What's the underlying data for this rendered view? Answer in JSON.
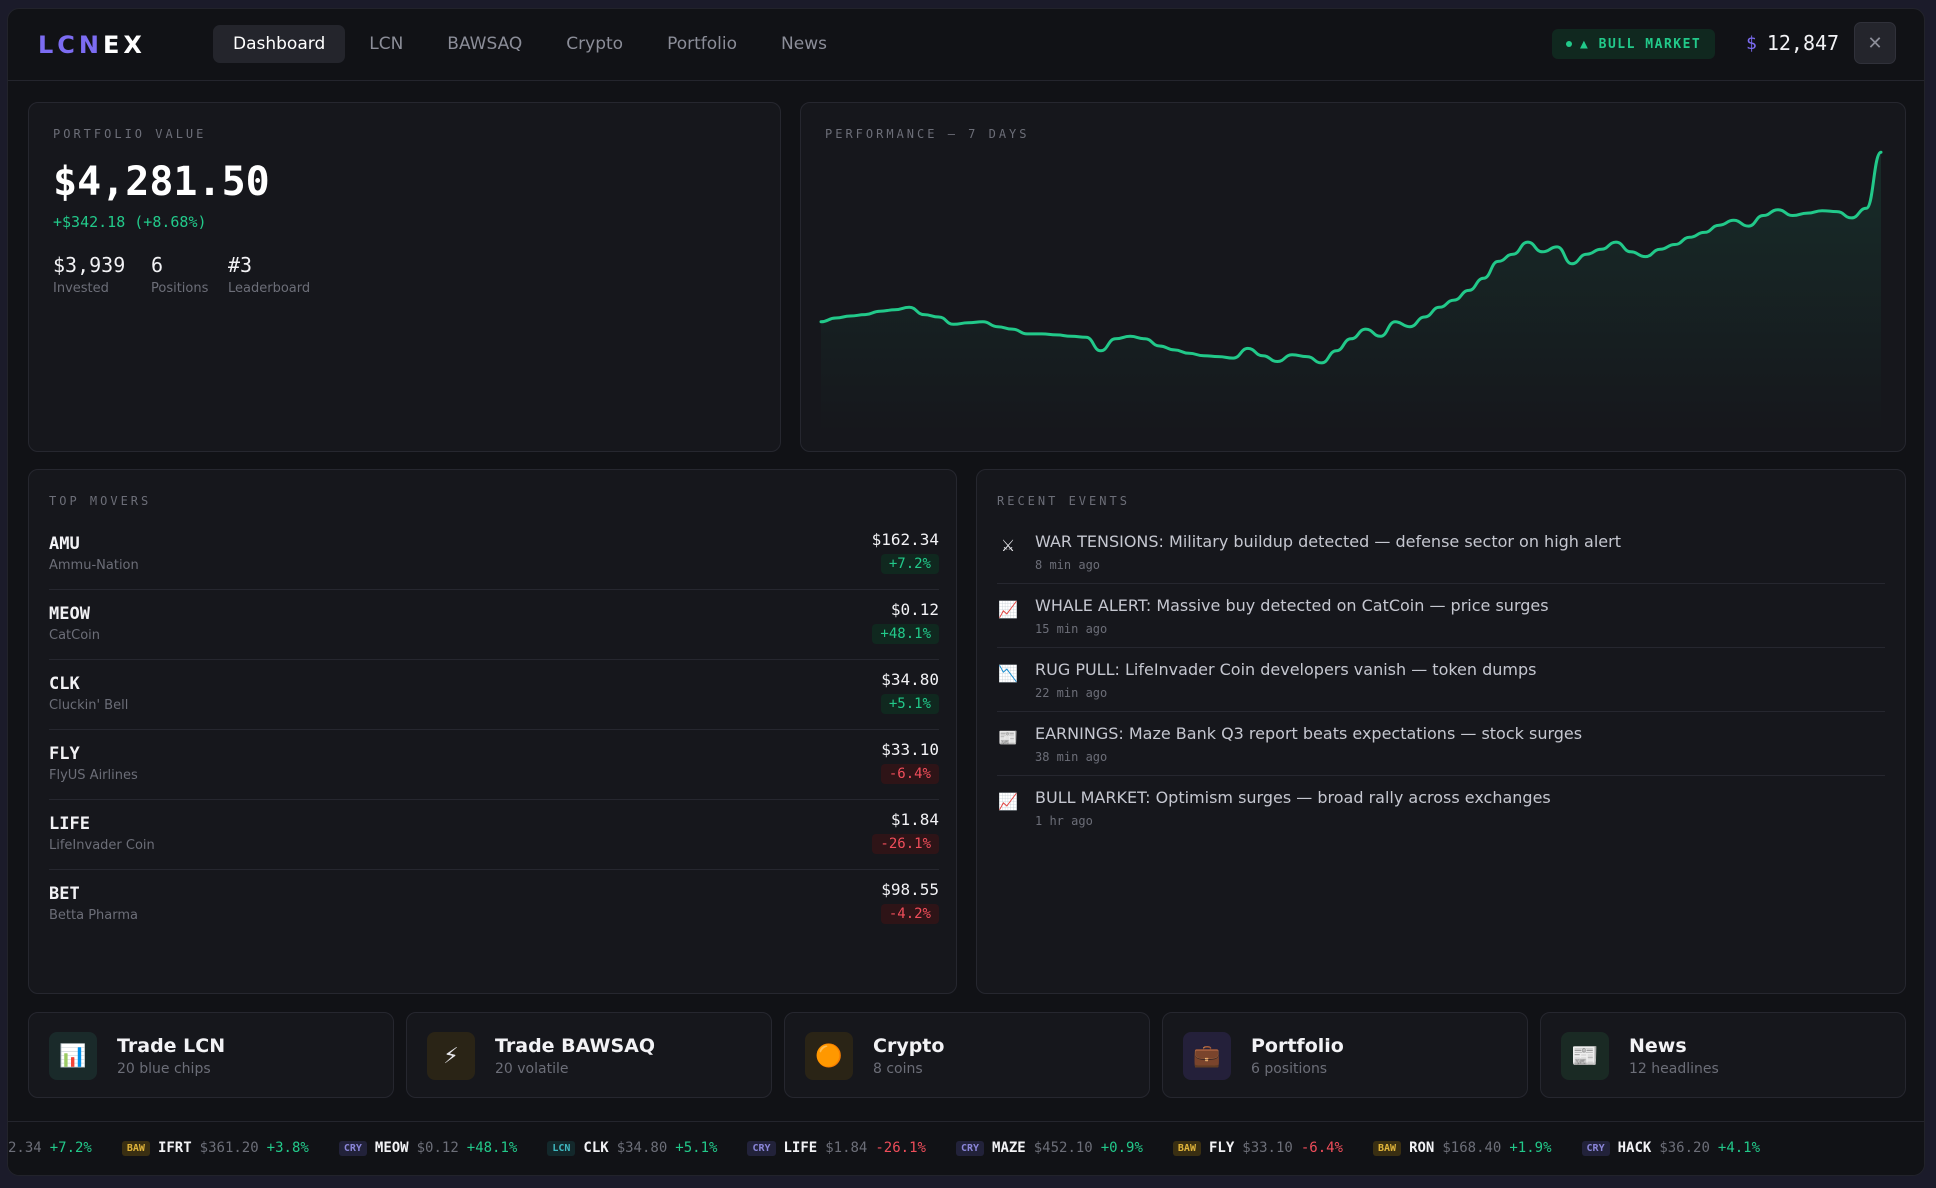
{
  "header": {
    "logo_main": "LCN",
    "logo_accent": "EX",
    "tabs": [
      {
        "label": "Dashboard",
        "active": true
      },
      {
        "label": "LCN",
        "active": false
      },
      {
        "label": "BAWSAQ",
        "active": false
      },
      {
        "label": "Crypto",
        "active": false
      },
      {
        "label": "Portfolio",
        "active": false
      },
      {
        "label": "News",
        "active": false
      }
    ],
    "market_badge": "▲ BULL MARKET",
    "cash_symbol": "$",
    "cash_value": "12,847",
    "close_icon": "close-icon"
  },
  "portfolio": {
    "label": "PORTFOLIO VALUE",
    "value": "$4,281.50",
    "change": "+$342.18 (+8.68%)",
    "stats": [
      {
        "value": "$3,939",
        "label": "Invested"
      },
      {
        "value": "6",
        "label": "Positions"
      },
      {
        "value": "#3",
        "label": "Leaderboard"
      }
    ]
  },
  "performance": {
    "label": "PERFORMANCE — 7 DAYS",
    "line_color": "#22c98a"
  },
  "chart_data": {
    "type": "line",
    "title": "",
    "xlabel": "",
    "ylabel": "",
    "grid": false,
    "ylim": [
      3700,
      4300
    ],
    "values": [
      3930,
      3938,
      3942,
      3945,
      3952,
      3955,
      3960,
      3945,
      3940,
      3925,
      3928,
      3930,
      3920,
      3915,
      3905,
      3905,
      3903,
      3900,
      3898,
      3870,
      3895,
      3900,
      3895,
      3880,
      3872,
      3865,
      3860,
      3858,
      3855,
      3875,
      3860,
      3848,
      3862,
      3858,
      3845,
      3870,
      3895,
      3915,
      3900,
      3930,
      3920,
      3940,
      3960,
      3975,
      3995,
      4020,
      4055,
      4070,
      4095,
      4075,
      4085,
      4050,
      4070,
      4080,
      4095,
      4075,
      4065,
      4080,
      4090,
      4105,
      4115,
      4130,
      4140,
      4128,
      4150,
      4162,
      4150,
      4155,
      4160,
      4158,
      4145,
      4165,
      4281
    ]
  },
  "movers": {
    "label": "TOP MOVERS",
    "items": [
      {
        "symbol": "AMU",
        "name": "Ammu-Nation",
        "price": "$162.34",
        "change": "+7.2%",
        "dir": "up"
      },
      {
        "symbol": "MEOW",
        "name": "CatCoin",
        "price": "$0.12",
        "change": "+48.1%",
        "dir": "up"
      },
      {
        "symbol": "CLK",
        "name": "Cluckin' Bell",
        "price": "$34.80",
        "change": "+5.1%",
        "dir": "up"
      },
      {
        "symbol": "FLY",
        "name": "FlyUS Airlines",
        "price": "$33.10",
        "change": "-6.4%",
        "dir": "down"
      },
      {
        "symbol": "LIFE",
        "name": "LifeInvader Coin",
        "price": "$1.84",
        "change": "-26.1%",
        "dir": "down"
      },
      {
        "symbol": "BET",
        "name": "Betta Pharma",
        "price": "$98.55",
        "change": "-4.2%",
        "dir": "down"
      }
    ]
  },
  "events": {
    "label": "RECENT EVENTS",
    "items": [
      {
        "icon": "crossed-swords-icon",
        "glyph": "⚔",
        "title": "WAR TENSIONS: Military buildup detected — defense sector on high alert",
        "time": "8 min ago"
      },
      {
        "icon": "chart-up-icon",
        "glyph": "📈",
        "title": "WHALE ALERT: Massive buy detected on CatCoin — price surges",
        "time": "15 min ago"
      },
      {
        "icon": "chart-down-icon",
        "glyph": "📉",
        "title": "RUG PULL: LifeInvader Coin developers vanish — token dumps",
        "time": "22 min ago"
      },
      {
        "icon": "newspaper-icon",
        "glyph": "📰",
        "title": "EARNINGS: Maze Bank Q3 report beats expectations — stock surges",
        "time": "38 min ago"
      },
      {
        "icon": "chart-up-icon",
        "glyph": "📈",
        "title": "BULL MARKET: Optimism surges — broad rally across exchanges",
        "time": "1 hr ago"
      }
    ]
  },
  "quick_links": [
    {
      "icon": "bar-chart-icon",
      "glyph": "📊",
      "bg": "#1a2a2a",
      "title": "Trade LCN",
      "subtitle": "20 blue chips"
    },
    {
      "icon": "lightning-icon",
      "glyph": "⚡",
      "bg": "#2a2416",
      "title": "Trade BAWSAQ",
      "subtitle": "20 volatile"
    },
    {
      "icon": "coin-icon",
      "glyph": "🟠",
      "bg": "#2a2416",
      "title": "Crypto",
      "subtitle": "8 coins"
    },
    {
      "icon": "briefcase-icon",
      "glyph": "💼",
      "bg": "#24203a",
      "title": "Portfolio",
      "subtitle": "6 positions"
    },
    {
      "icon": "newspaper-icon",
      "glyph": "📰",
      "bg": "#1a2a24",
      "title": "News",
      "subtitle": "12 headlines"
    }
  ],
  "ticker": {
    "lead_fragment": "2.34 ",
    "lead_change": "+7.2%",
    "items": [
      {
        "ex": "BAW",
        "symbol": "IFRT",
        "price": "$361.20",
        "change": "+3.8%",
        "dir": "up"
      },
      {
        "ex": "CRY",
        "symbol": "MEOW",
        "price": "$0.12",
        "change": "+48.1%",
        "dir": "up"
      },
      {
        "ex": "LCN",
        "symbol": "CLK",
        "price": "$34.80",
        "change": "+5.1%",
        "dir": "up"
      },
      {
        "ex": "CRY",
        "symbol": "LIFE",
        "price": "$1.84",
        "change": "-26.1%",
        "dir": "down"
      },
      {
        "ex": "CRY",
        "symbol": "MAZE",
        "price": "$452.10",
        "change": "+0.9%",
        "dir": "up"
      },
      {
        "ex": "BAW",
        "symbol": "FLY",
        "price": "$33.10",
        "change": "-6.4%",
        "dir": "down"
      },
      {
        "ex": "BAW",
        "symbol": "RON",
        "price": "$168.40",
        "change": "+1.9%",
        "dir": "up"
      },
      {
        "ex": "CRY",
        "symbol": "HACK",
        "price": "$36.20",
        "change": "+4.1%",
        "dir": "up"
      }
    ]
  }
}
